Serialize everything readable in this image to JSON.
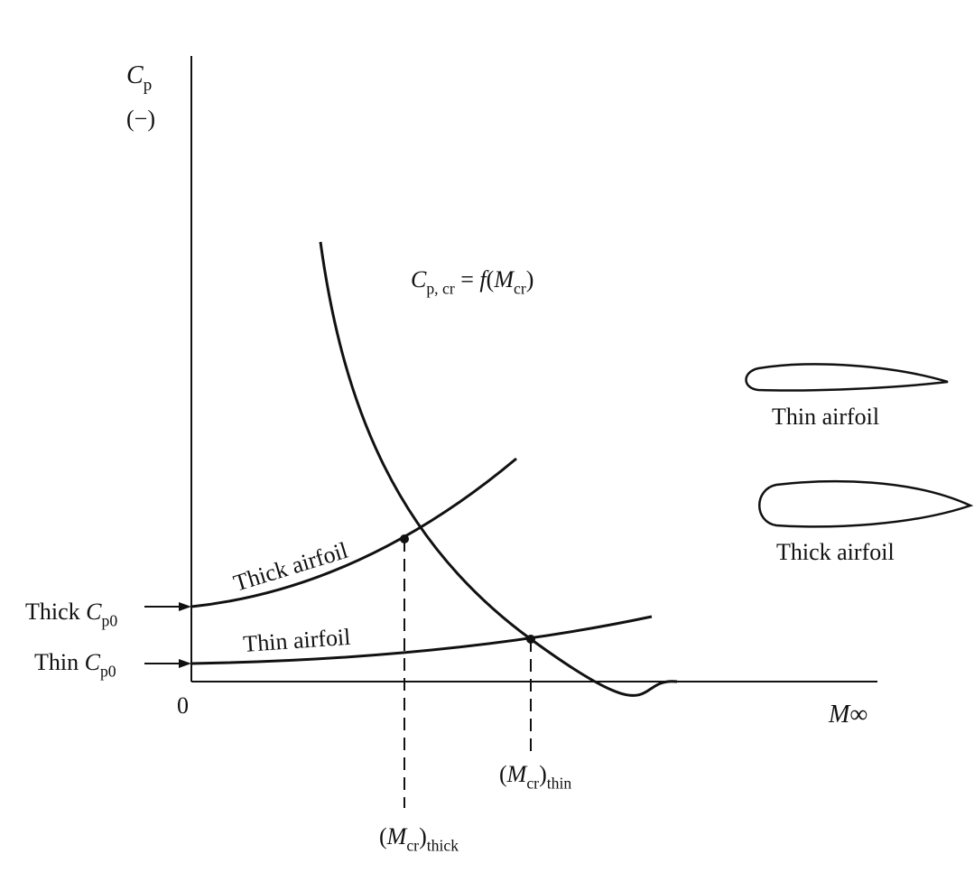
{
  "labels": {
    "y_axis": [
      {
        "it": "C"
      },
      {
        "s": "p"
      }
    ],
    "y_unit": [
      {
        "t": "(−)"
      }
    ],
    "formula": [
      {
        "it": "C"
      },
      {
        "s": "p, cr"
      },
      {
        "t": " = "
      },
      {
        "it": "f"
      },
      {
        "t": "("
      },
      {
        "it": "M"
      },
      {
        "s": "cr"
      },
      {
        "t": ")"
      }
    ],
    "x_axis": [
      {
        "it": "M"
      },
      {
        "t": "∞"
      }
    ],
    "origin": [
      {
        "t": "0"
      }
    ],
    "thick_cp0": [
      {
        "t": "Thick "
      },
      {
        "it": "C"
      },
      {
        "s": "p0"
      }
    ],
    "thin_cp0": [
      {
        "t": "Thin "
      },
      {
        "it": "C"
      },
      {
        "s": "p0"
      }
    ],
    "thick_curve": [
      {
        "t": "Thick airfoil"
      }
    ],
    "thin_curve": [
      {
        "t": "Thin airfoil"
      }
    ],
    "m_thick": [
      {
        "t": "("
      },
      {
        "it": "M"
      },
      {
        "s": "cr"
      },
      {
        "t": ")"
      },
      {
        "s": "thick"
      }
    ],
    "m_thin": [
      {
        "t": "("
      },
      {
        "it": "M"
      },
      {
        "s": "cr"
      },
      {
        "t": ")"
      },
      {
        "s": "thin"
      }
    ],
    "legend_thin": [
      {
        "t": "Thin airfoil"
      }
    ],
    "legend_thick": [
      {
        "t": "Thick airfoil"
      }
    ]
  }
}
